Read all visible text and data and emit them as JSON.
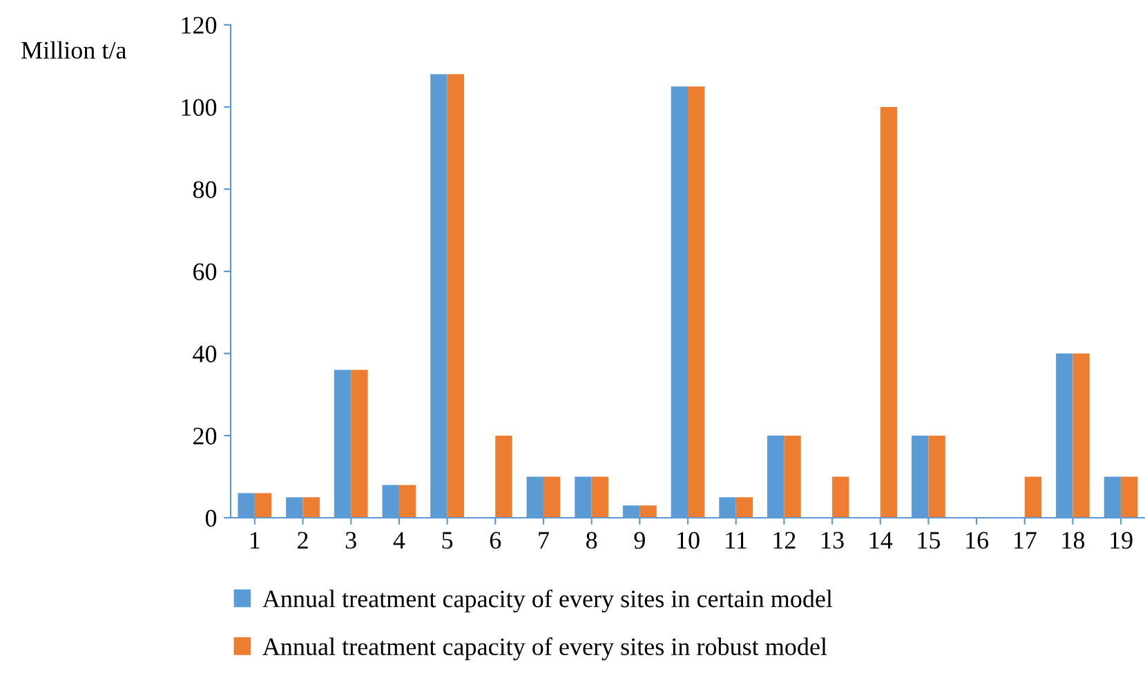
{
  "chart_data": {
    "type": "bar",
    "ylabel": "Million t/a",
    "categories": [
      "1",
      "2",
      "3",
      "4",
      "5",
      "6",
      "7",
      "8",
      "9",
      "10",
      "11",
      "12",
      "13",
      "14",
      "15",
      "16",
      "17",
      "18",
      "19"
    ],
    "series": [
      {
        "name": "Annual treatment capacity of every sites in certain model",
        "color": "#5b9bd5",
        "values": [
          6,
          5,
          36,
          8,
          108,
          0,
          10,
          10,
          3,
          105,
          5,
          20,
          0,
          0,
          20,
          0,
          0,
          40,
          10
        ]
      },
      {
        "name": "Annual treatment capacity of every sites in robust model",
        "color": "#ed7d31",
        "values": [
          6,
          5,
          36,
          8,
          108,
          20,
          10,
          10,
          3,
          105,
          5,
          20,
          10,
          100,
          20,
          0,
          10,
          40,
          10
        ]
      }
    ],
    "ylim": [
      0,
      120
    ],
    "yticks": [
      0,
      20,
      40,
      60,
      80,
      100,
      120
    ],
    "grid": false,
    "legend": "bottom"
  }
}
